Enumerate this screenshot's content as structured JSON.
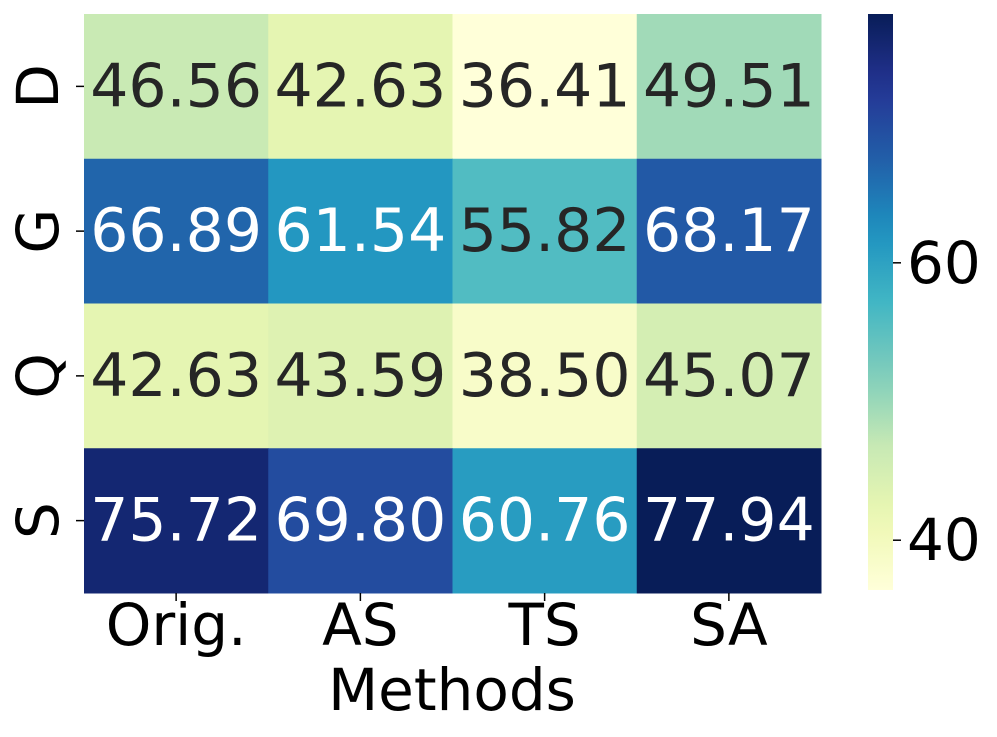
{
  "chart_data": {
    "type": "heatmap",
    "xlabel": "Methods",
    "ylabel": "",
    "x_categories": [
      "Orig.",
      "AS",
      "TS",
      "SA"
    ],
    "y_categories": [
      "D",
      "G",
      "Q",
      "S"
    ],
    "values": [
      [
        46.56,
        42.63,
        36.41,
        49.51
      ],
      [
        66.89,
        61.54,
        55.82,
        68.17
      ],
      [
        42.63,
        43.59,
        38.5,
        45.07
      ],
      [
        75.72,
        69.8,
        60.76,
        77.94
      ]
    ],
    "value_format": "0.00",
    "colormap": "YlGnBu",
    "color_range": [
      36.41,
      77.94
    ],
    "colorbar_ticks": [
      40,
      60
    ],
    "grid": false,
    "legend": "colorbar-right"
  }
}
